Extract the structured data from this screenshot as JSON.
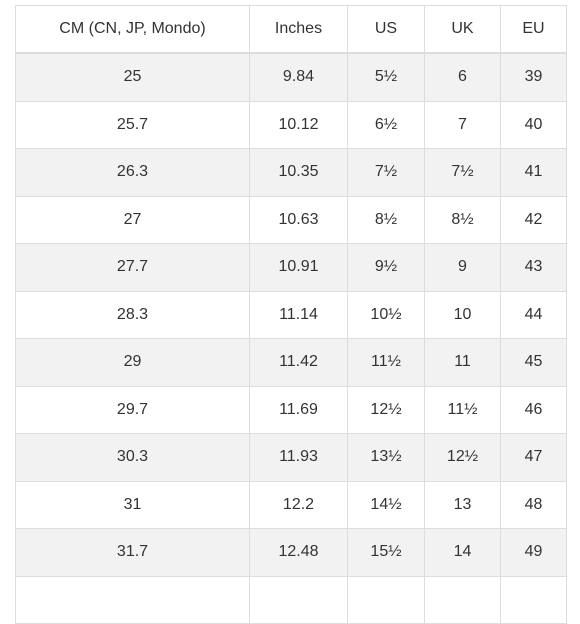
{
  "table": {
    "headers": [
      "CM (CN, JP, Mondo)",
      "Inches",
      "US",
      "UK",
      "EU"
    ],
    "rows": [
      [
        "25",
        "9.84",
        "5½",
        "6",
        "39"
      ],
      [
        "25.7",
        "10.12",
        "6½",
        "7",
        "40"
      ],
      [
        "26.3",
        "10.35",
        "7½",
        "7½",
        "41"
      ],
      [
        "27",
        "10.63",
        "8½",
        "8½",
        "42"
      ],
      [
        "27.7",
        "10.91",
        "9½",
        "9",
        "43"
      ],
      [
        "28.3",
        "11.14",
        "10½",
        "10",
        "44"
      ],
      [
        "29",
        "11.42",
        "11½",
        "11",
        "45"
      ],
      [
        "29.7",
        "11.69",
        "12½",
        "11½",
        "46"
      ],
      [
        "30.3",
        "11.93",
        "13½",
        "12½",
        "47"
      ],
      [
        "31",
        "12.2",
        "14½",
        "13",
        "48"
      ],
      [
        "31.7",
        "12.48",
        "15½",
        "14",
        "49"
      ],
      [
        "",
        "",
        "",
        "",
        ""
      ]
    ]
  }
}
